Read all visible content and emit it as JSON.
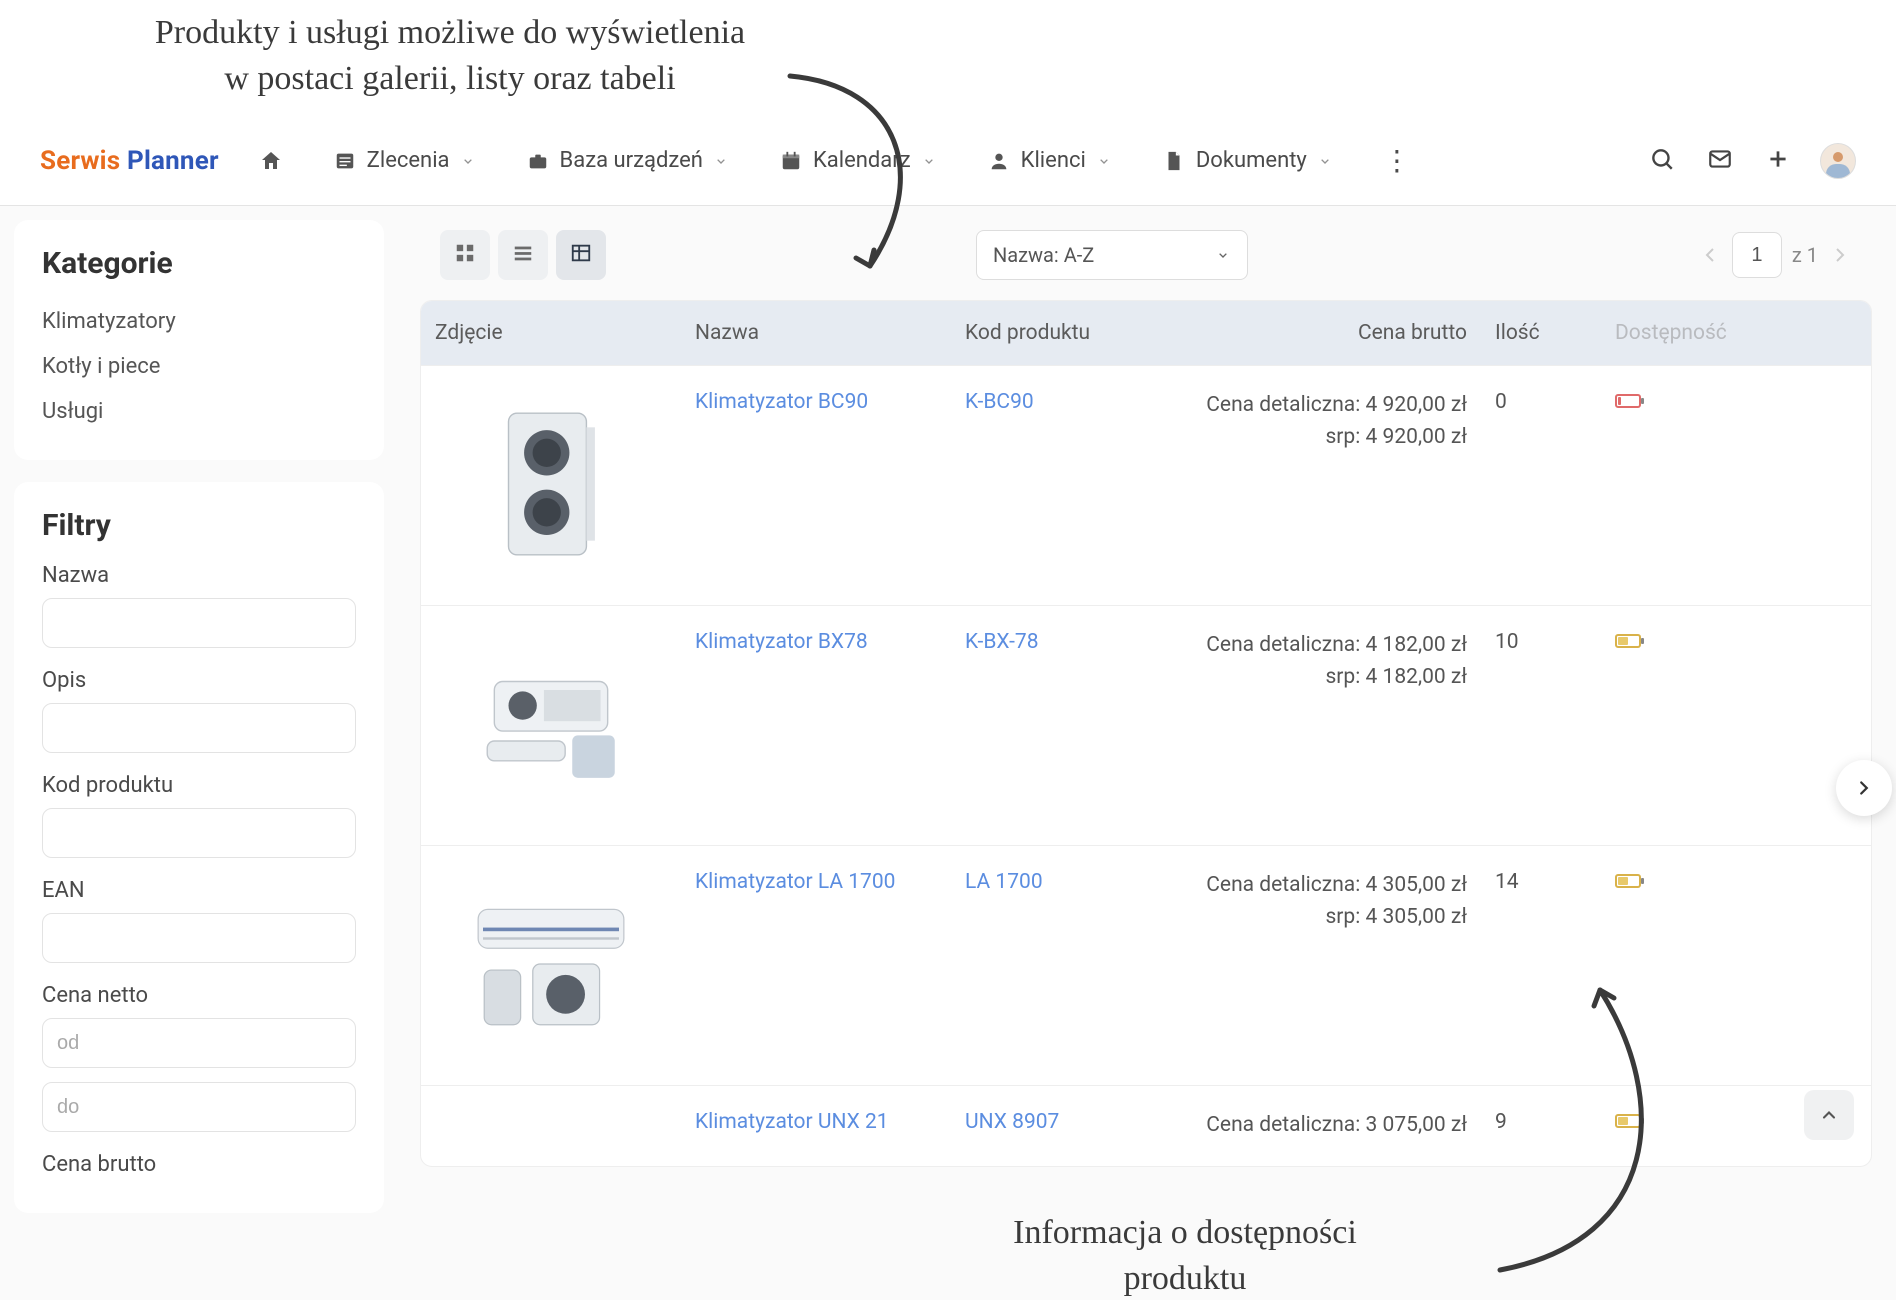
{
  "annotations": {
    "top": "Produkty i usługi możliwe do wyświetlenia\nw postaci galerii, listy oraz tabeli",
    "bottom": "Informacja o dostępności\nproduktu"
  },
  "logo": {
    "part1": "Serwis",
    "part2": "Planner",
    "color1": "#e86c1e",
    "color2": "#2f57b8"
  },
  "nav": {
    "zlecenia": "Zlecenia",
    "baza": "Baza urządzeń",
    "kalendarz": "Kalendarz",
    "klienci": "Klienci",
    "dokumenty": "Dokumenty"
  },
  "sidebar": {
    "categoriesTitle": "Kategorie",
    "categories": [
      "Klimatyzatory",
      "Kotły i piece",
      "Usługi"
    ],
    "filtersTitle": "Filtry",
    "labels": {
      "nazwa": "Nazwa",
      "opis": "Opis",
      "kod": "Kod produktu",
      "ean": "EAN",
      "cenaNetto": "Cena netto",
      "cenaBrutto": "Cena brutto"
    },
    "placeholders": {
      "from": "od",
      "to": "do"
    }
  },
  "toolbar": {
    "sortLabel": "Nazwa: A-Z",
    "pageCurrent": "1",
    "pageOf": "z 1"
  },
  "table": {
    "headers": {
      "img": "Zdjęcie",
      "name": "Nazwa",
      "code": "Kod produktu",
      "price": "Cena brutto",
      "qty": "Ilość",
      "avail": "Dostępność"
    },
    "priceLabels": {
      "retail": "Cena detaliczna:",
      "srp": "srp:"
    },
    "rows": [
      {
        "name": "Klimatyzator BC90",
        "code": "K-BC90",
        "retail": "4 920,00 zł",
        "srp": "4 920,00 zł",
        "qty": "0",
        "battery": "red"
      },
      {
        "name": "Klimatyzator BX78",
        "code": "K-BX-78",
        "retail": "4 182,00 zł",
        "srp": "4 182,00 zł",
        "qty": "10",
        "battery": "yellow"
      },
      {
        "name": "Klimatyzator LA 1700",
        "code": "LA 1700",
        "retail": "4 305,00 zł",
        "srp": "4 305,00 zł",
        "qty": "14",
        "battery": "yellow"
      },
      {
        "name": "Klimatyzator UNX 21",
        "code": "UNX 8907",
        "retail": "3 075,00 zł",
        "srp": "",
        "qty": "9",
        "battery": "yellow"
      }
    ]
  },
  "colors": {
    "link": "#5b8de0",
    "headerBg": "#e6ebf2",
    "bodyBg": "#fafafa",
    "annotation": "#3a3a3a",
    "battRed": "#e06a6a",
    "battYellow": "#e8c96a"
  }
}
